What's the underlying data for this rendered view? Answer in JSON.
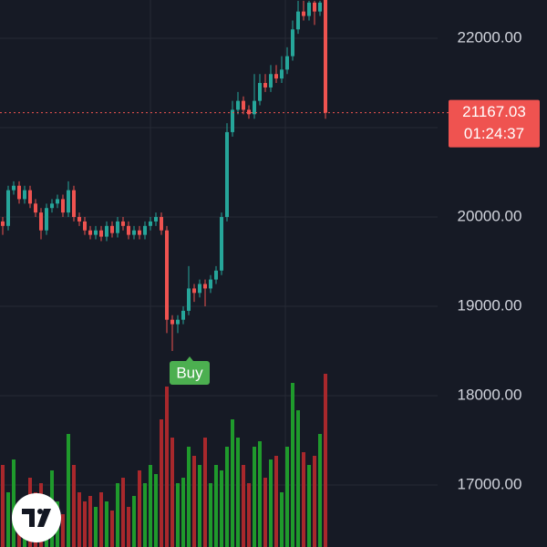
{
  "chart_data": {
    "type": "candlestick",
    "open": [
      19950,
      19900,
      20300,
      20350,
      20200,
      20300,
      20150,
      20050,
      19850,
      20100,
      20150,
      20200,
      20050,
      20300,
      20000,
      19950,
      19850,
      19800,
      19850,
      19780,
      19900,
      19820,
      19950,
      19900,
      19800,
      19850,
      19800,
      19900,
      19950,
      20000,
      19850,
      18850,
      18800,
      18850,
      18950,
      19200,
      19150,
      19250,
      19200,
      19300,
      19400,
      20000,
      20950,
      21200,
      21300,
      21200,
      21150,
      21300,
      21500,
      21450,
      21600,
      21550,
      21650,
      21800,
      22100,
      22300,
      22250,
      22400,
      22300,
      22450
    ],
    "high": [
      20000,
      20350,
      20400,
      20400,
      20350,
      20350,
      20200,
      20100,
      20150,
      20200,
      20250,
      20250,
      20400,
      20350,
      20050,
      20000,
      19900,
      19900,
      19900,
      19950,
      19950,
      20000,
      20000,
      19950,
      19900,
      19900,
      19950,
      20000,
      20050,
      20050,
      19900,
      18900,
      18900,
      19000,
      19450,
      19250,
      19300,
      19300,
      19350,
      19450,
      20050,
      21050,
      21300,
      21400,
      21350,
      21250,
      21600,
      21600,
      21600,
      21700,
      21700,
      21800,
      21900,
      22200,
      22420,
      22420,
      22420,
      22420,
      22420,
      22460
    ],
    "low": [
      19800,
      19850,
      20250,
      20150,
      20150,
      20100,
      20000,
      19750,
      19800,
      20050,
      20100,
      20000,
      20000,
      19950,
      19900,
      19800,
      19750,
      19750,
      19730,
      19730,
      19770,
      19770,
      19850,
      19750,
      19750,
      19750,
      19750,
      19850,
      19900,
      19800,
      18700,
      18500,
      18700,
      18800,
      18900,
      19050,
      19100,
      19000,
      19150,
      19250,
      19350,
      19950,
      20900,
      21150,
      21150,
      21100,
      21100,
      21250,
      21400,
      21400,
      21500,
      21500,
      21600,
      21750,
      22050,
      22200,
      22200,
      22150,
      22250,
      21100
    ],
    "close": [
      19900,
      20300,
      20350,
      20200,
      20300,
      20150,
      20050,
      19850,
      20100,
      20150,
      20200,
      20050,
      20300,
      20000,
      19950,
      19850,
      19800,
      19850,
      19780,
      19900,
      19820,
      19950,
      19900,
      19800,
      19850,
      19800,
      19900,
      19950,
      20000,
      19850,
      18850,
      18800,
      18850,
      18950,
      19200,
      19150,
      19250,
      19200,
      19300,
      19400,
      20000,
      20950,
      21200,
      21300,
      21200,
      21150,
      21300,
      21500,
      21450,
      21600,
      21550,
      21650,
      21800,
      22100,
      22300,
      22250,
      22400,
      22300,
      22400,
      21167.03
    ],
    "volume": [
      45,
      30,
      48,
      20,
      25,
      38,
      30,
      35,
      20,
      42,
      25,
      18,
      62,
      45,
      30,
      25,
      28,
      22,
      30,
      25,
      20,
      35,
      38,
      22,
      28,
      42,
      35,
      45,
      40,
      70,
      88,
      60,
      35,
      38,
      55,
      50,
      45,
      60,
      35,
      45,
      42,
      55,
      70,
      60,
      45,
      35,
      55,
      58,
      38,
      48,
      50,
      30,
      55,
      90,
      75,
      52,
      45,
      50,
      62,
      95
    ],
    "volume_lim": [
      0,
      100
    ],
    "up_color": "#26a69a",
    "down_color": "#ef5350",
    "volume_up_color": "#1f9a2c",
    "volume_down_color": "#a8282c",
    "ylim": [
      16306,
      22429
    ],
    "yticks": [
      {
        "value": 17000,
        "label": "17000.00"
      },
      {
        "value": 18000,
        "label": "18000.00"
      },
      {
        "value": 19000,
        "label": "19000.00"
      },
      {
        "value": 20000,
        "label": "20000.00"
      },
      {
        "value": 21000,
        "label": "21000.00"
      },
      {
        "value": 22000,
        "label": "22000.00"
      }
    ],
    "grid": true,
    "last_price": 21167.03,
    "countdown": "01:24:37",
    "annotation": "Buy"
  }
}
